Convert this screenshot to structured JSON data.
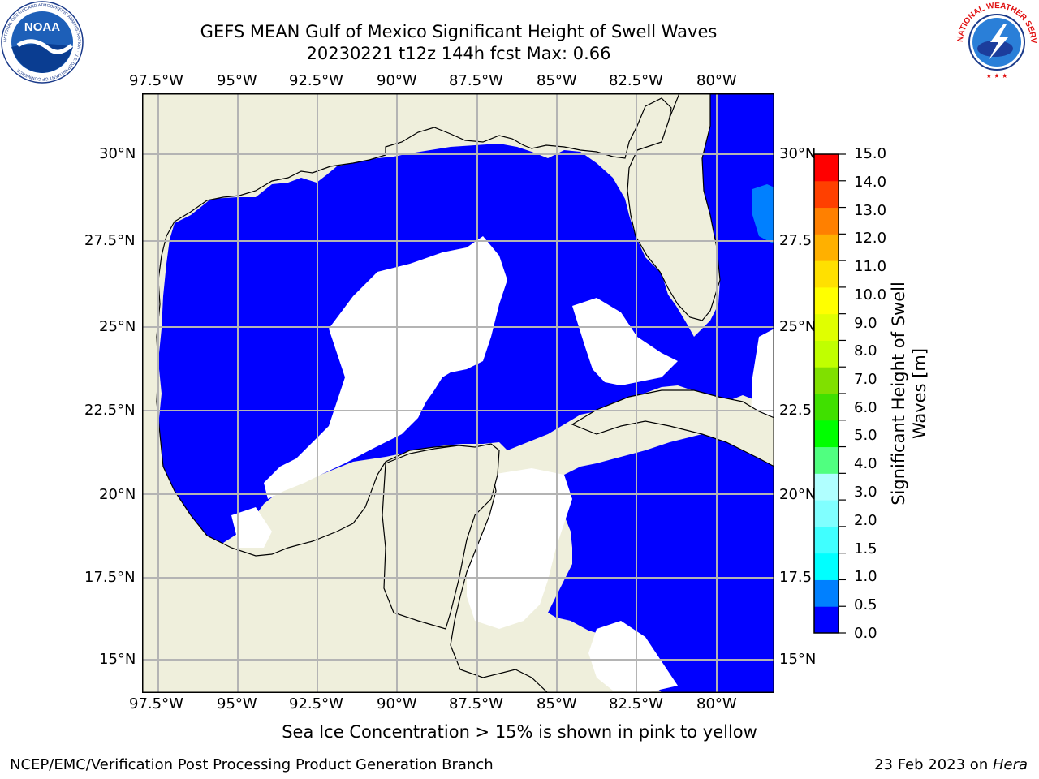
{
  "header": {
    "title_line1": "GEFS MEAN Gulf of Mexico Significant Height of Swell Waves",
    "title_line2": "20230221 t12z 144h fcst   Max: 0.66"
  },
  "logos": {
    "noaa_text": "NOAA",
    "noaa_ring_text": "NATIONAL OCEANIC AND ATMOSPHERIC ADMINISTRATION · U.S. DEPARTMENT OF COMMERCE",
    "nws_ring_text": "NATIONAL WEATHER SERVICE"
  },
  "map": {
    "lon_labels": [
      "97.5°W",
      "95°W",
      "92.5°W",
      "90°W",
      "87.5°W",
      "85°W",
      "82.5°W",
      "80°W"
    ],
    "lat_labels_left": [
      "30°N",
      "27.5°N",
      "25°N",
      "22.5°N",
      "20°N",
      "17.5°N",
      "15°N"
    ],
    "lat_labels_right": [
      "30°N",
      "27.5",
      "25°N",
      "22.5",
      "20°N",
      "17.5",
      "15°N"
    ],
    "colors": {
      "land": "#efefdc",
      "water_low": "#0000ff",
      "water_mid": "#0080ff",
      "missing": "#ffffff",
      "grid": "#b4b4b4"
    }
  },
  "colorbar": {
    "tick_labels": [
      "15.0",
      "14.0",
      "13.0",
      "12.0",
      "11.0",
      "10.0",
      "9.0",
      "8.0",
      "7.0",
      "6.0",
      "5.0",
      "4.0",
      "3.0",
      "2.0",
      "1.5",
      "1.0",
      "0.5",
      "0.0"
    ],
    "label_line1": "Significant Height of Swell",
    "label_line2": "Waves [m]",
    "colors": [
      "#0000ff",
      "#0080ff",
      "#00ffff",
      "#40ffff",
      "#80ffff",
      "#b0ffff",
      "#50ff80",
      "#00ff00",
      "#40e000",
      "#80e000",
      "#c0ff00",
      "#e0ff00",
      "#ffff00",
      "#ffe000",
      "#ffb000",
      "#ff8000",
      "#ff4000",
      "#ff0000"
    ]
  },
  "footer": {
    "note": "Sea Ice Concentration > 15% is shown in pink to yellow",
    "left": "NCEP/EMC/Verification Post Processing Product Generation Branch",
    "right_date": "23 Feb 2023 on ",
    "right_host": "Hera"
  }
}
